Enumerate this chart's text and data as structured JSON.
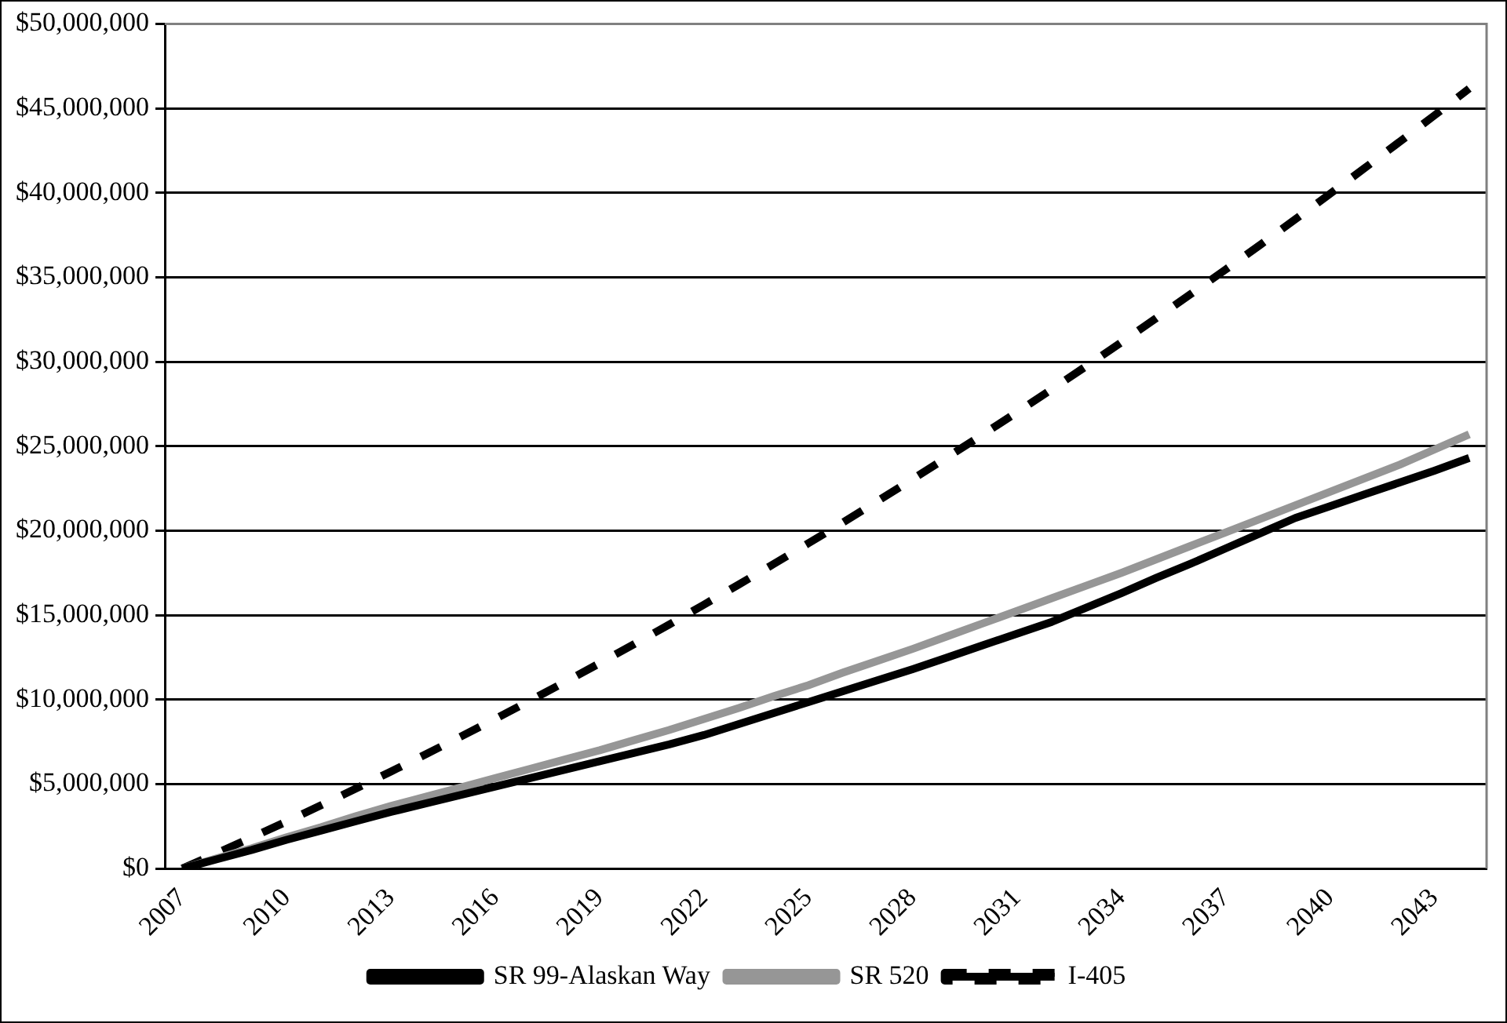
{
  "chart_data": {
    "type": "line",
    "categories": [
      "2007",
      null,
      null,
      "2010",
      null,
      null,
      "2013",
      null,
      null,
      "2016",
      null,
      null,
      "2019",
      null,
      null,
      "2022",
      null,
      null,
      "2025",
      null,
      null,
      "2028",
      null,
      null,
      "2031",
      null,
      null,
      "2034",
      null,
      null,
      "2037",
      null,
      null,
      "2040",
      null,
      null,
      "2043",
      null
    ],
    "series": [
      {
        "name": "SR 99-Alaskan Way",
        "color": "#000000",
        "line_style": "solid",
        "values": [
          0,
          550000,
          1100000,
          1700000,
          2250000,
          2800000,
          3350000,
          3850000,
          4350000,
          4850000,
          5350000,
          5850000,
          6350000,
          6850000,
          7350000,
          7900000,
          8550000,
          9200000,
          9850000,
          10500000,
          11150000,
          11800000,
          12500000,
          13200000,
          13900000,
          14600000,
          15450000,
          16300000,
          17200000,
          18050000,
          18950000,
          19850000,
          20750000,
          21450000,
          22150000,
          22850000,
          23550000,
          24300000
        ]
      },
      {
        "name": "SR 520",
        "color": "#969696",
        "line_style": "solid",
        "values": [
          0,
          600000,
          1200000,
          1850000,
          2450000,
          3100000,
          3700000,
          4250000,
          4800000,
          5350000,
          5900000,
          6450000,
          7000000,
          7600000,
          8200000,
          8850000,
          9500000,
          10200000,
          10850000,
          11600000,
          12300000,
          13000000,
          13750000,
          14500000,
          15250000,
          16000000,
          16750000,
          17500000,
          18300000,
          19100000,
          19900000,
          20700000,
          21500000,
          22300000,
          23100000,
          23900000,
          24800000,
          25700000
        ]
      },
      {
        "name": "I-405",
        "color": "#000000",
        "line_style": "dashed",
        "values": [
          0,
          910000,
          1840000,
          2780000,
          3750000,
          4740000,
          5740000,
          6760000,
          7800000,
          8860000,
          9940000,
          11040000,
          12150000,
          13290000,
          14440000,
          15620000,
          16810000,
          18020000,
          19250000,
          20490000,
          21760000,
          23050000,
          24350000,
          25670000,
          27010000,
          28370000,
          29750000,
          31150000,
          32570000,
          34010000,
          35460000,
          36930000,
          38430000,
          39940000,
          41470000,
          43020000,
          44580000,
          46170000
        ]
      }
    ],
    "ylim": [
      0,
      50000000
    ],
    "yticks": [
      {
        "value": 0,
        "label": "$0"
      },
      {
        "value": 5000000,
        "label": "$5,000,000"
      },
      {
        "value": 10000000,
        "label": "$10,000,000"
      },
      {
        "value": 15000000,
        "label": "$15,000,000"
      },
      {
        "value": 20000000,
        "label": "$20,000,000"
      },
      {
        "value": 25000000,
        "label": "$25,000,000"
      },
      {
        "value": 30000000,
        "label": "$30,000,000"
      },
      {
        "value": 35000000,
        "label": "$35,000,000"
      },
      {
        "value": 40000000,
        "label": "$40,000,000"
      },
      {
        "value": 45000000,
        "label": "$45,000,000"
      },
      {
        "value": 50000000,
        "label": "$50,000,000"
      }
    ],
    "grid": "y",
    "legend": "bottom",
    "marker": "none"
  }
}
